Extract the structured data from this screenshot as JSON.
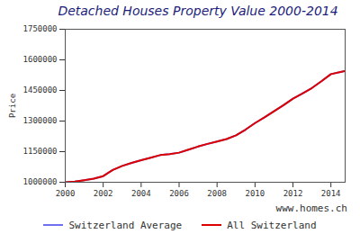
{
  "chart_data": {
    "type": "line",
    "title": "Detached Houses Property Value 2000-2014",
    "y_label": "Price",
    "caption": "www.homes.ch",
    "x": [
      2000,
      2000.5,
      2001,
      2001.5,
      2002,
      2002.5,
      2003,
      2003.5,
      2004,
      2004.5,
      2005,
      2005.5,
      2006,
      2006.5,
      2007,
      2007.5,
      2008,
      2008.5,
      2009,
      2009.5,
      2010,
      2010.5,
      2011,
      2011.5,
      2012,
      2012.5,
      2013,
      2013.5,
      2014,
      2014.5,
      2014.75
    ],
    "series": [
      {
        "name": "Switzerland Average",
        "color": "#6f6ff0",
        "values": [
          1000000,
          1003000,
          1010000,
          1018000,
          1030000,
          1060000,
          1080000,
          1095000,
          1108000,
          1120000,
          1133000,
          1138000,
          1145000,
          1160000,
          1175000,
          1188000,
          1200000,
          1212000,
          1230000,
          1258000,
          1290000,
          1318000,
          1348000,
          1378000,
          1410000,
          1435000,
          1462000,
          1495000,
          1530000,
          1540000,
          1545000
        ]
      },
      {
        "name": "All Switzerland",
        "color": "#dd0000",
        "values": [
          1000000,
          1003000,
          1010000,
          1018000,
          1030000,
          1060000,
          1080000,
          1095000,
          1108000,
          1120000,
          1133000,
          1138000,
          1145000,
          1160000,
          1175000,
          1188000,
          1200000,
          1212000,
          1230000,
          1258000,
          1290000,
          1318000,
          1348000,
          1378000,
          1410000,
          1435000,
          1462000,
          1495000,
          1530000,
          1540000,
          1545000
        ]
      }
    ],
    "xlim": [
      2000,
      2014.75
    ],
    "xticks": [
      2000,
      2002,
      2004,
      2006,
      2008,
      2010,
      2012,
      2014
    ],
    "ylim": [
      1000000,
      1750000
    ],
    "yticks": [
      1000000,
      1150000,
      1300000,
      1450000,
      1600000,
      1750000
    ],
    "grid": false,
    "legend": "bottom"
  }
}
